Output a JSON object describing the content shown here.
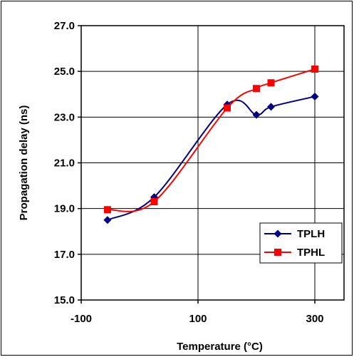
{
  "chart_data": {
    "type": "line",
    "title": "",
    "xlabel": "Temperature (°C)",
    "ylabel": "Propagation delay (ns)",
    "xlim": [
      -100,
      350
    ],
    "ylim": [
      15.0,
      27.0
    ],
    "x_ticks": [
      "-100",
      "100",
      "300"
    ],
    "x_tick_values": [
      -100,
      100,
      300
    ],
    "y_ticks": [
      "15.0",
      "17.0",
      "19.0",
      "21.0",
      "23.0",
      "25.0",
      "27.0"
    ],
    "y_tick_values": [
      15,
      17,
      19,
      21,
      23,
      25,
      27
    ],
    "grid": true,
    "smoothed": true,
    "legend_position": "bottom-right",
    "series": [
      {
        "name": "TPLH",
        "color": "#000080",
        "marker": "diamond",
        "x": [
          -55,
          25,
          150,
          200,
          225,
          300
        ],
        "y": [
          18.5,
          19.5,
          23.55,
          23.1,
          23.45,
          23.9
        ]
      },
      {
        "name": "TPHL",
        "color": "#ff0000",
        "marker": "square",
        "x": [
          -55,
          25,
          150,
          200,
          225,
          300
        ],
        "y": [
          18.95,
          19.3,
          23.4,
          24.25,
          24.5,
          25.1
        ]
      }
    ]
  }
}
